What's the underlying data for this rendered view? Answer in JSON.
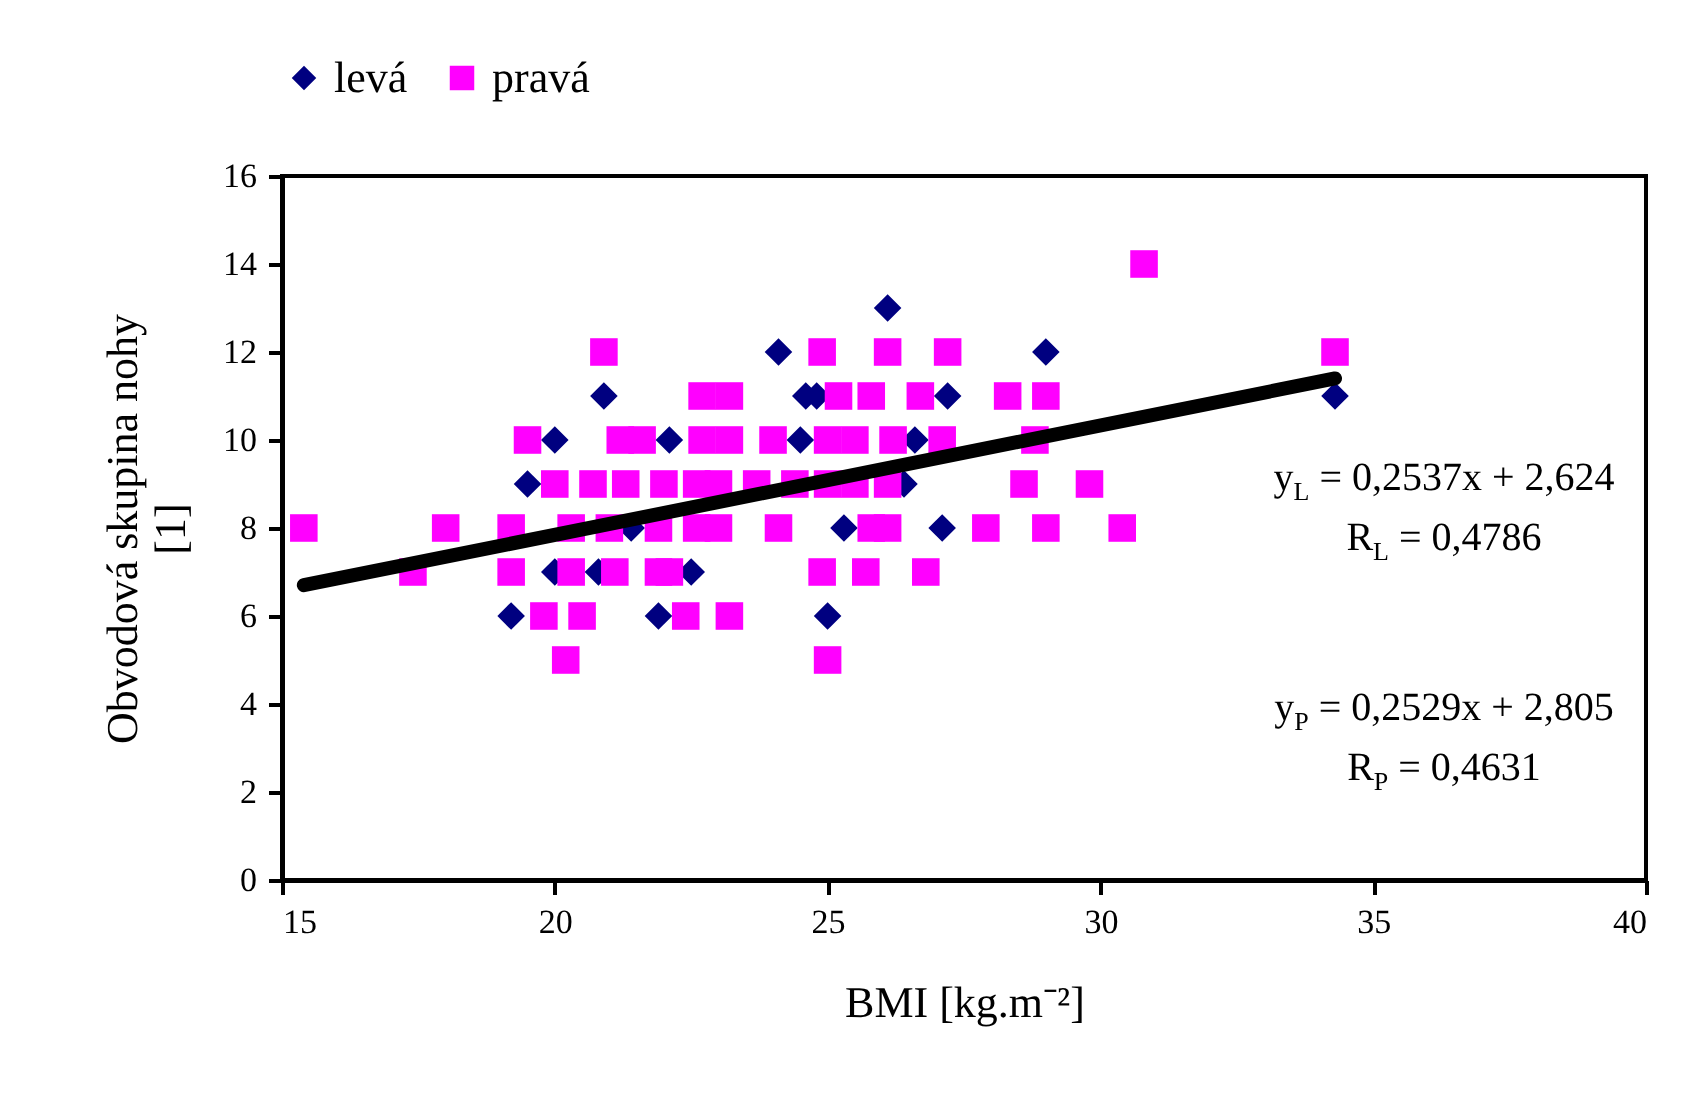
{
  "chart_data": {
    "type": "scatter",
    "xlabel": "BMI [kg.m⁻²]",
    "ylabel": "Obvodová skupina nohy [1]",
    "xlim": [
      15,
      40
    ],
    "xticks": [
      15,
      20,
      25,
      30,
      35,
      40
    ],
    "ylim": [
      0,
      16
    ],
    "yticks": [
      0,
      2,
      4,
      6,
      8,
      10,
      12,
      14,
      16
    ],
    "grid": false,
    "legend": "top",
    "series": [
      {
        "name": "levá",
        "color": "#000080",
        "marker": "diamond",
        "x": [
          20.9,
          20.0,
          19.5,
          19.2,
          22.1,
          21.9,
          22.5,
          21.4,
          20.0,
          20.8,
          26.1,
          24.1,
          29.0,
          24.6,
          24.8,
          27.2,
          24.5,
          26.6,
          26.4,
          25.3,
          27.1,
          25.0,
          34.3
        ],
        "values": [
          11,
          10,
          9,
          6,
          10,
          6,
          7,
          8,
          7,
          7,
          13,
          12,
          12,
          11,
          11,
          11,
          10,
          10,
          9,
          8,
          8,
          6,
          11
        ]
      },
      {
        "name": "pravá",
        "color": "#ff00ff",
        "marker": "square",
        "x": [
          15.4,
          17.4,
          18.0,
          19.2,
          19.2,
          19.5,
          20.0,
          19.8,
          20.5,
          20.2,
          20.3,
          20.7,
          20.9,
          20.3,
          21.0,
          21.1,
          21.3,
          21.2,
          21.6,
          21.9,
          22.1,
          22.0,
          22.6,
          23.0,
          21.9,
          22.6,
          23.0,
          22.7,
          23.2,
          22.7,
          23.2,
          22.4,
          23.2,
          30.8,
          24.9,
          26.1,
          27.2,
          25.2,
          25.8,
          26.7,
          28.3,
          29.0,
          24.0,
          25.0,
          25.5,
          26.2,
          27.1,
          28.8,
          23.7,
          24.4,
          25.0,
          25.5,
          26.1,
          28.6,
          29.8,
          24.1,
          25.8,
          26.1,
          27.9,
          29.0,
          30.4,
          24.9,
          25.7,
          26.8,
          25.0,
          34.3
        ],
        "values": [
          8,
          7,
          8,
          8,
          7,
          10,
          9,
          6,
          6,
          5,
          7,
          9,
          12,
          8,
          8,
          7,
          9,
          10,
          10,
          7,
          7,
          9,
          9,
          9,
          8,
          8,
          8,
          10,
          10,
          11,
          11,
          6,
          6,
          14,
          12,
          12,
          12,
          11,
          11,
          11,
          11,
          11,
          10,
          10,
          10,
          10,
          10,
          10,
          9,
          9,
          9,
          9,
          9,
          9,
          9,
          8,
          8,
          8,
          8,
          8,
          8,
          7,
          7,
          7,
          5,
          12
        ]
      },
      {
        "type": "line",
        "color": "#000000",
        "x": [
          15.4,
          34.3
        ],
        "values": [
          6.7,
          11.4
        ]
      }
    ],
    "annotations": [
      "y$_{L}$ = 0,2537x + 2,624",
      "R$_{L}$ = 0,4786",
      "y$_{P}$ = 0,2529x + 2,805",
      "R$_{P}$ = 0,4631"
    ]
  }
}
